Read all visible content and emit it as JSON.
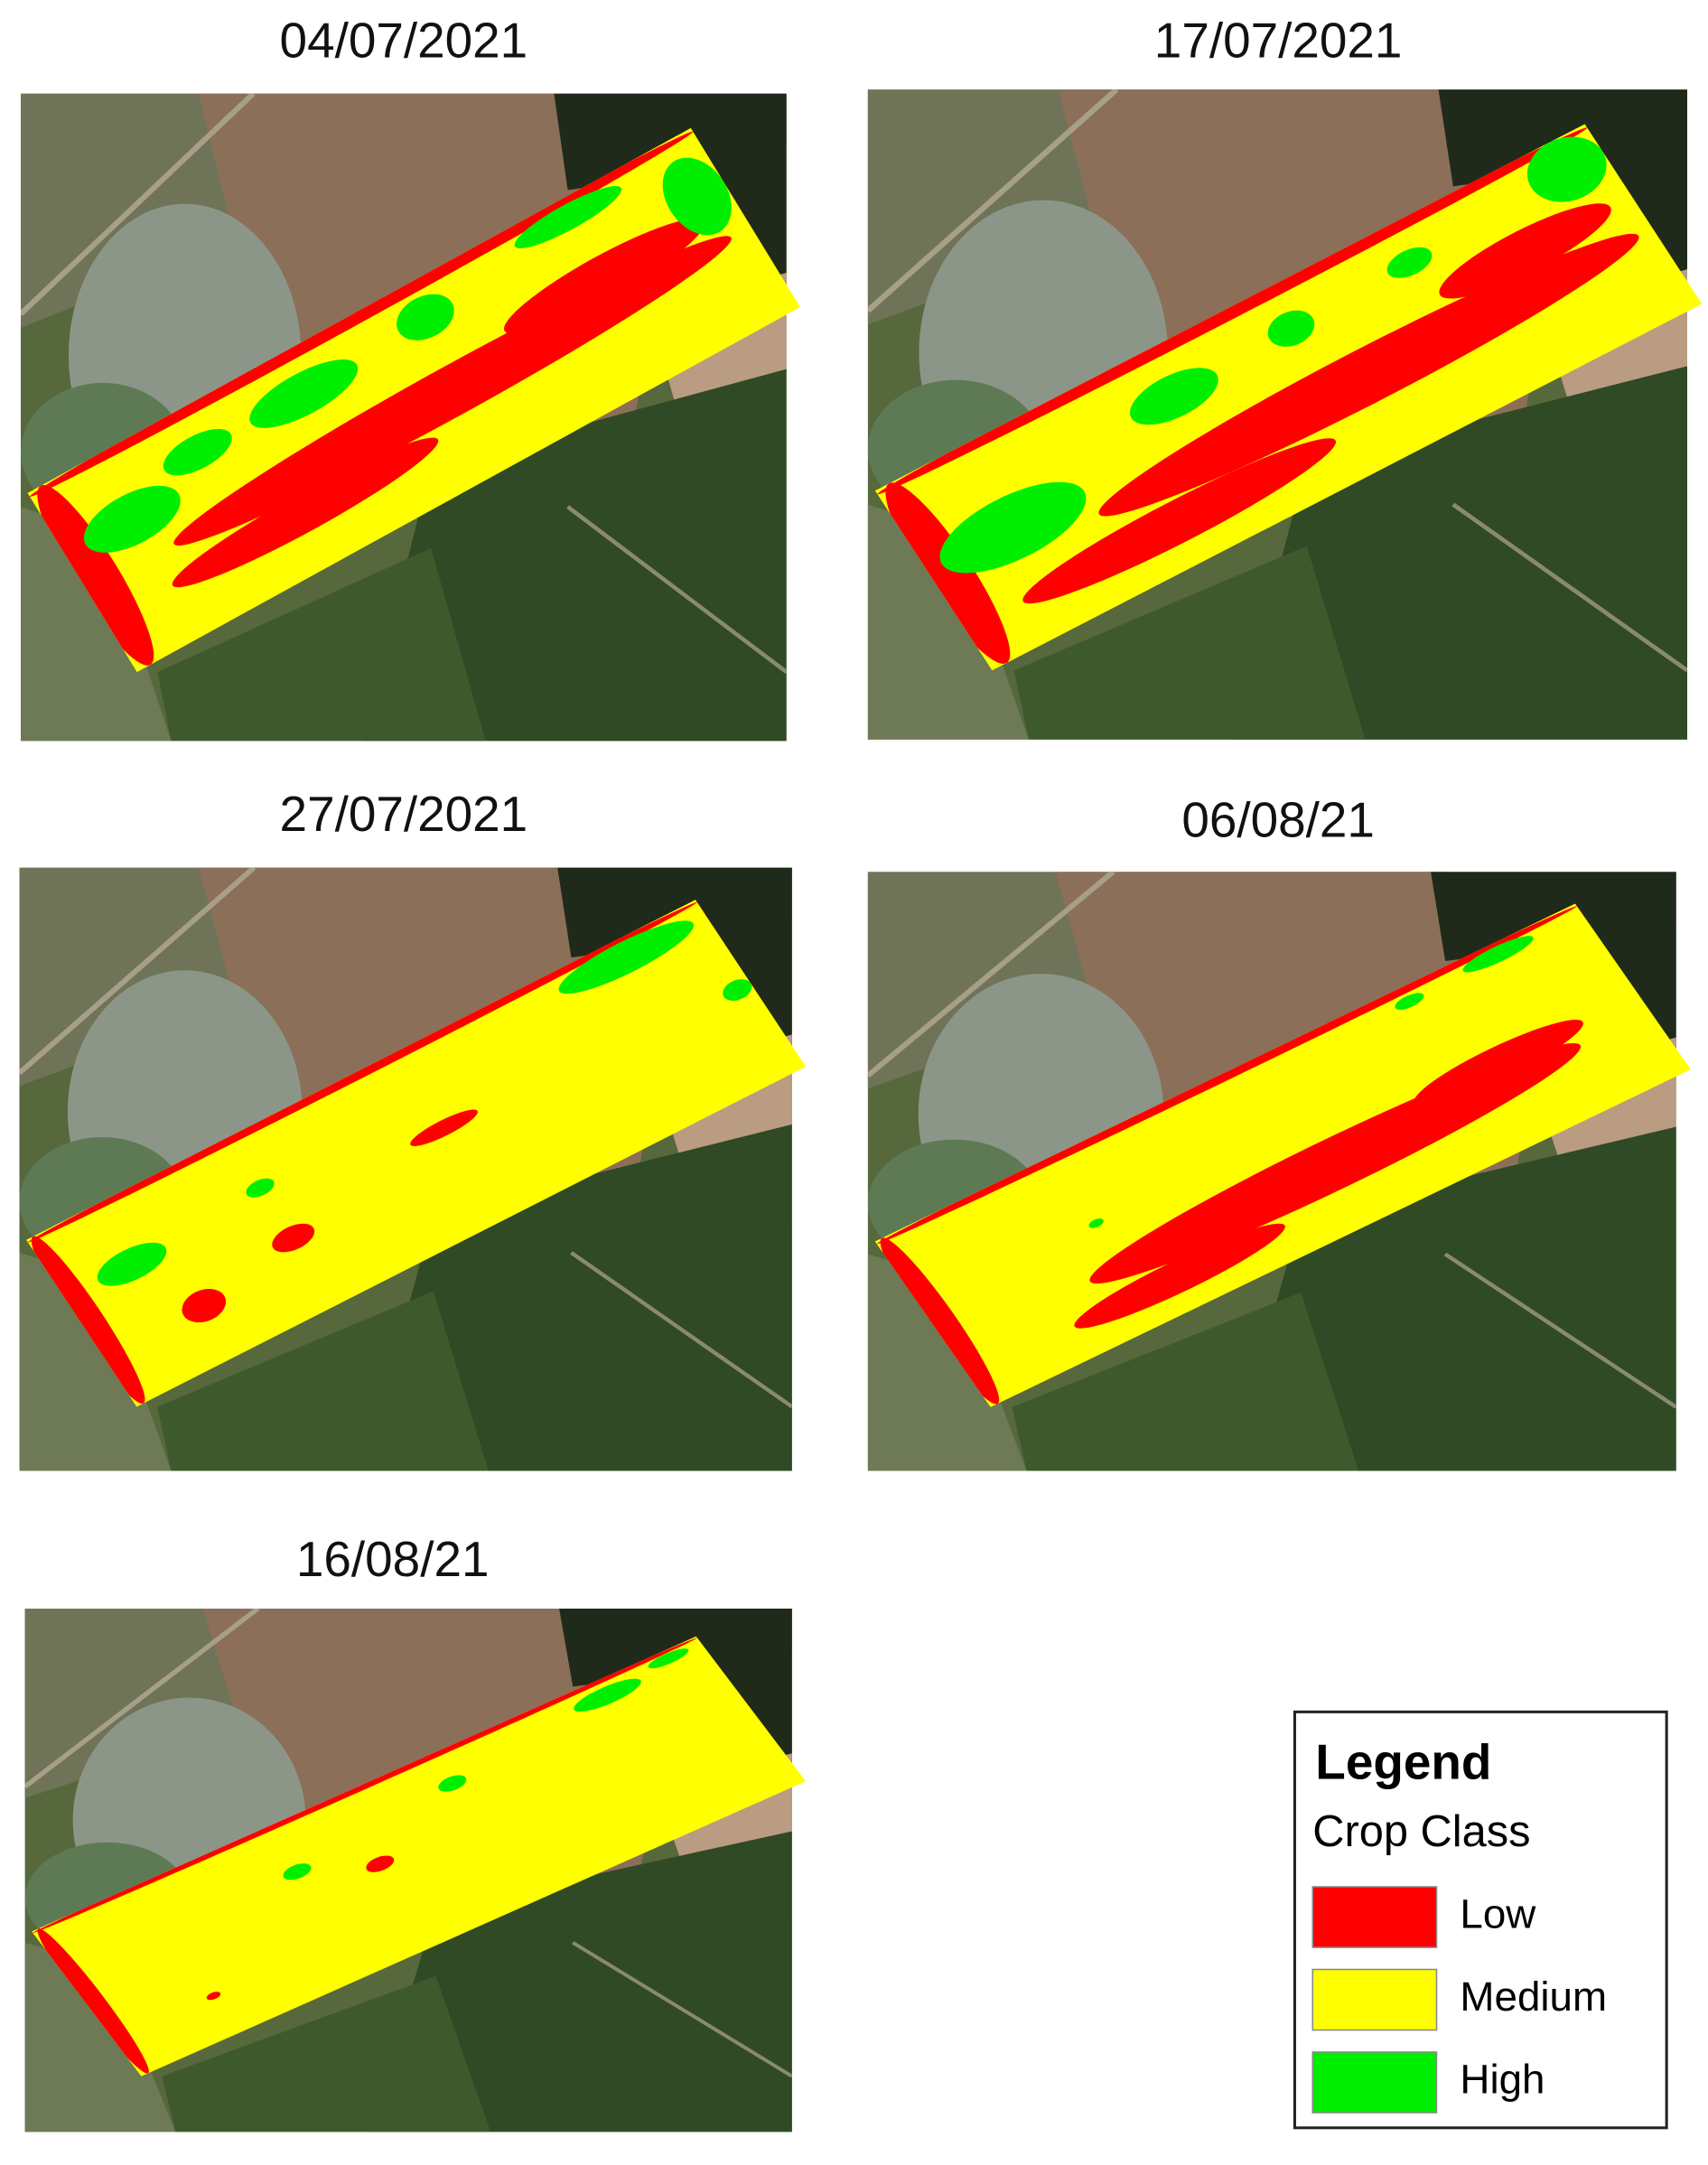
{
  "panels": [
    {
      "date": "04/07/2021"
    },
    {
      "date": "17/07/2021"
    },
    {
      "date": "27/07/2021"
    },
    {
      "date": "06/08/21"
    },
    {
      "date": "16/08/21"
    }
  ],
  "legend": {
    "title": "Legend",
    "subtitle": "Crop Class",
    "items": [
      {
        "label": "Low",
        "color": "#ff0000"
      },
      {
        "label": "Medium",
        "color": "#ffff00"
      },
      {
        "label": "High",
        "color": "#00ee00"
      }
    ]
  }
}
